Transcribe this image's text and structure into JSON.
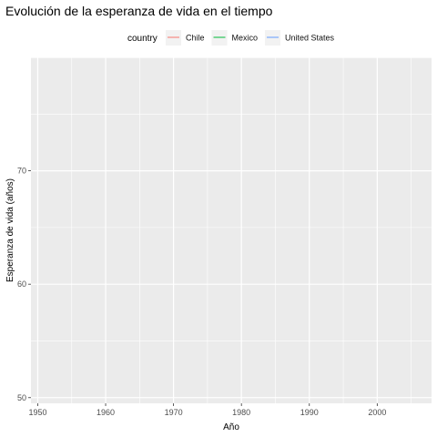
{
  "chart_data": {
    "type": "line",
    "title": "Evolución de la esperanza de vida en el tiempo",
    "xlabel": "Año",
    "ylabel": "Esperanza de vida (años)",
    "xlim": [
      1949,
      2008
    ],
    "ylim": [
      49.5,
      80
    ],
    "x_ticks": [
      1950,
      1960,
      1970,
      1980,
      1990,
      2000
    ],
    "y_ticks": [
      50,
      60,
      70
    ],
    "grid": true,
    "legend": {
      "title": "country",
      "position": "top",
      "entries": [
        {
          "name": "Chile",
          "color": "#F8766D"
        },
        {
          "name": "Mexico",
          "color": "#00BA38"
        },
        {
          "name": "United States",
          "color": "#619CFF"
        }
      ]
    },
    "series": [
      {
        "name": "Chile",
        "color": "#F8766D",
        "x": [],
        "y": []
      },
      {
        "name": "Mexico",
        "color": "#00BA38",
        "x": [],
        "y": []
      },
      {
        "name": "United States",
        "color": "#619CFF",
        "x": [],
        "y": []
      }
    ]
  },
  "colors": {
    "panel_background": "#EBEBEB",
    "grid_major": "#FFFFFF",
    "tick_text": "#4D4D4D"
  }
}
